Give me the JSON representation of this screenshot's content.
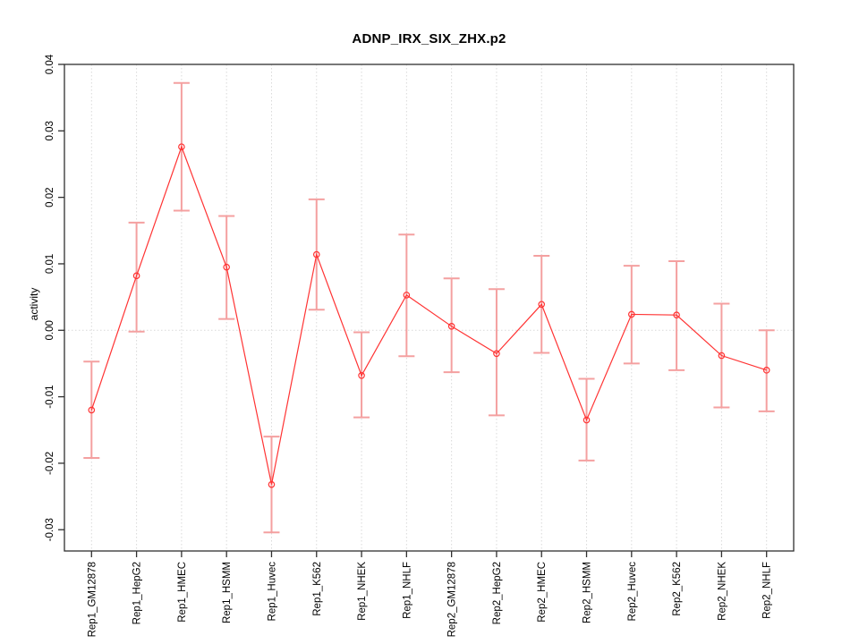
{
  "chart_data": {
    "type": "line",
    "title": "ADNP_IRX_SIX_ZHX.p2",
    "xlabel": "",
    "ylabel": "activity",
    "legend_position": "none",
    "point_style": "open-circle",
    "grid": {
      "vertical_dotted_per_category": true,
      "horizontal_dotted_zero_line": true
    },
    "ylim": [
      -0.0332,
      0.04
    ],
    "yticks": [
      -0.03,
      -0.02,
      -0.01,
      0.0,
      0.01,
      0.02,
      0.03,
      0.04
    ],
    "ytick_labels": [
      "-0.03",
      "-0.02",
      "-0.01",
      "0.00",
      "0.01",
      "0.02",
      "0.03",
      "0.04"
    ],
    "categories": [
      "Rep1_GM12878",
      "Rep1_HepG2",
      "Rep1_HMEC",
      "Rep1_HSMM",
      "Rep1_Huvec",
      "Rep1_K562",
      "Rep1_NHEK",
      "Rep1_NHLF",
      "Rep2_GM12878",
      "Rep2_HepG2",
      "Rep2_HMEC",
      "Rep2_HSMM",
      "Rep2_Huvec",
      "Rep2_K562",
      "Rep2_NHEK",
      "Rep2_NHLF"
    ],
    "series": [
      {
        "name": "activity",
        "values": [
          -0.012,
          0.0082,
          0.0276,
          0.0095,
          -0.0232,
          0.0114,
          -0.0068,
          0.0053,
          0.0006,
          -0.0035,
          0.0039,
          -0.0135,
          0.0024,
          0.0023,
          -0.0038,
          -0.006
        ],
        "lower": [
          -0.0192,
          -0.0002,
          0.018,
          0.0017,
          -0.0304,
          0.0031,
          -0.0131,
          -0.0039,
          -0.0063,
          -0.0128,
          -0.0034,
          -0.0196,
          -0.005,
          -0.006,
          -0.0116,
          -0.0122
        ],
        "upper": [
          -0.0047,
          0.0162,
          0.0372,
          0.0172,
          -0.016,
          0.0197,
          -0.0003,
          0.0144,
          0.0078,
          0.0062,
          0.0112,
          -0.0073,
          0.0097,
          0.0104,
          0.004,
          0.0
        ]
      }
    ],
    "colors": {
      "line": "#ff3333",
      "point": "#ff3333",
      "error_bar": "#f4a0a0",
      "grid": "#d9d9d9",
      "axis": "#2f2f2f",
      "text": "#000000"
    }
  }
}
